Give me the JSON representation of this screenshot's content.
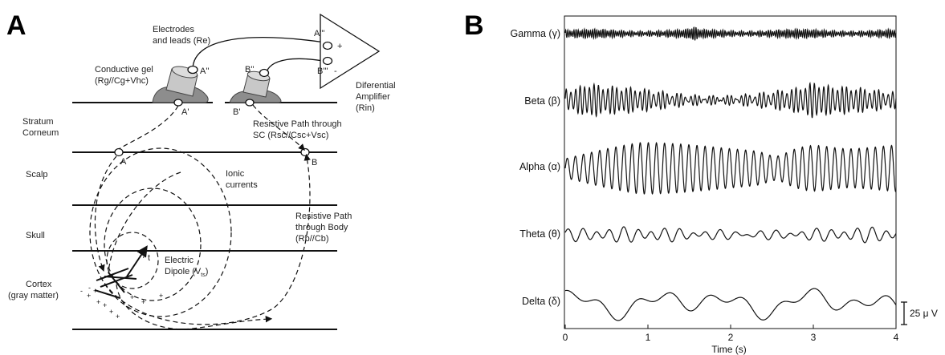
{
  "panel_a": {
    "letter": "A",
    "electrodes_line1": "Electrodes",
    "electrodes_line2": "and leads  (Re)",
    "gel_line1": "Conductive gel",
    "gel_line2": "(Rg//Cg+Vhc)",
    "amp_line1": "Diferential",
    "amp_line2": "Amplifier",
    "amp_line3": "(Rin)",
    "plus": "+",
    "minus": "-",
    "node_a2": "A''",
    "node_b2": "B''",
    "node_a3": "A'''",
    "node_b3": "B'''",
    "node_a1": "A'",
    "node_b1": "B'",
    "node_a": "A",
    "node_b": "B",
    "sc_path_line1": "Resistive Path through",
    "sc_path_line2": "SC  (Rsc//Csc+Vsc)",
    "stratum_line1": "Stratum",
    "stratum_line2": "Corneum",
    "scalp": "Scalp",
    "skull": "Skull",
    "cortex_line1": "Cortex",
    "cortex_line2": "(gray matter)",
    "ionic_line1": "Ionic",
    "ionic_line2": "currents",
    "body_path_line1": "Resistive Path",
    "body_path_line2": "through Body",
    "body_path_line3": "(Rb//Cb)",
    "dipole_line1": "Electric",
    "dipole_line2": "Dipole (V",
    "dipole_sub": "ts",
    "dipole_close": ")",
    "dipole_vec": "r",
    "dipole_vec_sub": "t"
  },
  "panel_b": {
    "letter": "B",
    "traces": [
      {
        "name": "Gamma",
        "symbol": "(γ)"
      },
      {
        "name": "Beta",
        "symbol": "(β)"
      },
      {
        "name": "Alpha",
        "symbol": "(α)"
      },
      {
        "name": "Theta",
        "symbol": "(θ)"
      },
      {
        "name": "Delta",
        "symbol": "(δ)"
      }
    ],
    "x_ticks": [
      "0",
      "1",
      "2",
      "3",
      "4"
    ],
    "x_label": "Time (s)",
    "scale_bar": "25 μ V"
  },
  "chart_data": {
    "type": "line",
    "x_range": [
      0,
      4
    ],
    "xlabel": "Time (s)",
    "x_ticks": [
      0,
      1,
      2,
      3,
      4
    ],
    "series": [
      {
        "name": "Gamma (γ)"
      },
      {
        "name": "Beta (β)"
      },
      {
        "name": "Alpha (α)"
      },
      {
        "name": "Theta (θ)"
      },
      {
        "name": "Delta (δ)"
      }
    ],
    "scale_bar": "25 μ V"
  }
}
